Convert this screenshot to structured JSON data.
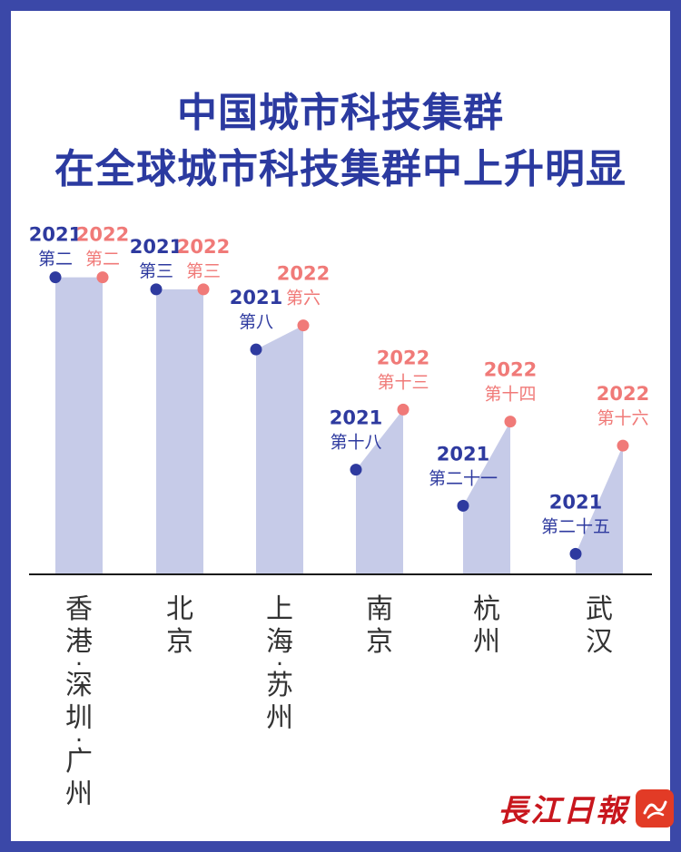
{
  "title_line1": "中国城市科技集群",
  "title_line2": "在全球城市科技集群中上升明显",
  "logo": {
    "text": "長江日報",
    "badge_icon": "dawu-badge-icon"
  },
  "colors": {
    "y2021": "#2e3a9f",
    "y2022": "#f07a78",
    "area": "#c6cbe8",
    "title": "#2b3aa0",
    "frame": "#3b48a8"
  },
  "chart_data": {
    "type": "area",
    "title": "中国城市科技集群在全球城市科技集群中上升明显",
    "categories": [
      "香港-深圳-广州",
      "北京",
      "上海-苏州",
      "南京",
      "杭州",
      "武汉"
    ],
    "series": [
      {
        "name": "2021",
        "values": [
          2,
          3,
          8,
          18,
          21,
          25
        ],
        "labels": [
          "第二",
          "第三",
          "第八",
          "第十八",
          "第二十一",
          "第二十五"
        ]
      },
      {
        "name": "2022",
        "values": [
          2,
          3,
          6,
          13,
          14,
          16
        ],
        "labels": [
          "第二",
          "第三",
          "第六",
          "第十三",
          "第十四",
          "第十六"
        ]
      }
    ],
    "y_meaning": "rank (lower is better)",
    "grid": false,
    "legend": "inline labels"
  }
}
